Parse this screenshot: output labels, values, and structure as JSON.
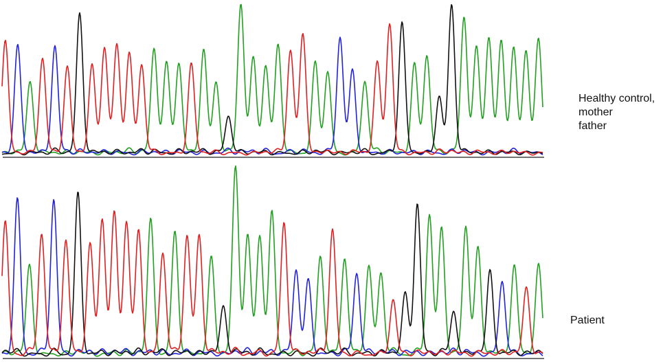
{
  "chart_data": [
    {
      "type": "line",
      "name_lines": [
        "Healthy control,",
        "mother",
        "father"
      ],
      "colors": {
        "A": "#22a022",
        "C": "#2222dd",
        "G": "#111111",
        "T": "#e02020"
      },
      "peaks": [
        {
          "b": "T",
          "h": 0.75
        },
        {
          "b": "C",
          "h": 0.72
        },
        {
          "b": "A",
          "h": 0.48
        },
        {
          "b": "T",
          "h": 0.64
        },
        {
          "b": "C",
          "h": 0.72
        },
        {
          "b": "T",
          "h": 0.58
        },
        {
          "b": "G",
          "h": 0.93
        },
        {
          "b": "T",
          "h": 0.59
        },
        {
          "b": "T",
          "h": 0.71
        },
        {
          "b": "T",
          "h": 0.73
        },
        {
          "b": "T",
          "h": 0.67
        },
        {
          "b": "T",
          "h": 0.6
        },
        {
          "b": "A",
          "h": 0.7
        },
        {
          "b": "A",
          "h": 0.61
        },
        {
          "b": "A",
          "h": 0.61
        },
        {
          "b": "T",
          "h": 0.6
        },
        {
          "b": "A",
          "h": 0.7
        },
        {
          "b": "A",
          "h": 0.48
        },
        {
          "b": "G",
          "h": 0.26
        },
        {
          "b": "A",
          "h": 1.0
        },
        {
          "b": "A",
          "h": 0.64
        },
        {
          "b": "A",
          "h": 0.59
        },
        {
          "b": "A",
          "h": 0.73
        },
        {
          "b": "T",
          "h": 0.69
        },
        {
          "b": "T",
          "h": 0.8
        },
        {
          "b": "A",
          "h": 0.61
        },
        {
          "b": "A",
          "h": 0.55
        },
        {
          "b": "C",
          "h": 0.78
        },
        {
          "b": "C",
          "h": 0.56
        },
        {
          "b": "A",
          "h": 0.49
        },
        {
          "b": "T",
          "h": 0.61
        },
        {
          "b": "T",
          "h": 0.87
        },
        {
          "b": "G",
          "h": 0.87
        },
        {
          "b": "A",
          "h": 0.6
        },
        {
          "b": "A",
          "h": 0.66
        },
        {
          "b": "G",
          "h": 0.39
        },
        {
          "b": "G",
          "h": 0.99
        },
        {
          "b": "A",
          "h": 0.91
        },
        {
          "b": "A",
          "h": 0.71
        },
        {
          "b": "A",
          "h": 0.78
        },
        {
          "b": "A",
          "h": 0.75
        },
        {
          "b": "A",
          "h": 0.71
        },
        {
          "b": "A",
          "h": 0.69
        },
        {
          "b": "A",
          "h": 0.76
        }
      ]
    },
    {
      "type": "line",
      "name_lines": [
        "Patient"
      ],
      "colors": {
        "A": "#22a022",
        "C": "#2222dd",
        "G": "#111111",
        "T": "#e02020"
      },
      "peaks": [
        {
          "b": "T",
          "h": 0.71
        },
        {
          "b": "C",
          "h": 0.83
        },
        {
          "b": "A",
          "h": 0.48
        },
        {
          "b": "T",
          "h": 0.65
        },
        {
          "b": "C",
          "h": 0.83
        },
        {
          "b": "T",
          "h": 0.61
        },
        {
          "b": "G",
          "h": 0.86
        },
        {
          "b": "T",
          "h": 0.59
        },
        {
          "b": "T",
          "h": 0.73
        },
        {
          "b": "T",
          "h": 0.76
        },
        {
          "b": "T",
          "h": 0.71
        },
        {
          "b": "T",
          "h": 0.67
        },
        {
          "b": "A",
          "h": 0.72
        },
        {
          "b": "T",
          "h": 0.55
        },
        {
          "b": "A",
          "h": 0.66
        },
        {
          "b": "T",
          "h": 0.64
        },
        {
          "b": "T",
          "h": 0.64
        },
        {
          "b": "A",
          "h": 0.52
        },
        {
          "b": "G",
          "h": 0.26
        },
        {
          "b": "A",
          "h": 1.0
        },
        {
          "b": "A",
          "h": 0.64
        },
        {
          "b": "A",
          "h": 0.64
        },
        {
          "b": "A",
          "h": 0.76
        },
        {
          "b": "T",
          "h": 0.71
        },
        {
          "b": "C",
          "h": 0.46
        },
        {
          "b": "C",
          "h": 0.4
        },
        {
          "b": "A",
          "h": 0.53
        },
        {
          "b": "T",
          "h": 0.67
        },
        {
          "b": "A",
          "h": 0.52
        },
        {
          "b": "C",
          "h": 0.44
        },
        {
          "b": "A",
          "h": 0.48
        },
        {
          "b": "A",
          "h": 0.44
        },
        {
          "b": "T",
          "h": 0.3
        },
        {
          "b": "G",
          "h": 0.33
        },
        {
          "b": "G",
          "h": 0.81
        },
        {
          "b": "A",
          "h": 0.75
        },
        {
          "b": "A",
          "h": 0.68
        },
        {
          "b": "G",
          "h": 0.24
        },
        {
          "b": "A",
          "h": 0.69
        },
        {
          "b": "A",
          "h": 0.57
        },
        {
          "b": "G",
          "h": 0.45
        },
        {
          "b": "C",
          "h": 0.4
        },
        {
          "b": "A",
          "h": 0.48
        },
        {
          "b": "T",
          "h": 0.36
        },
        {
          "b": "A",
          "h": 0.48
        }
      ]
    }
  ]
}
